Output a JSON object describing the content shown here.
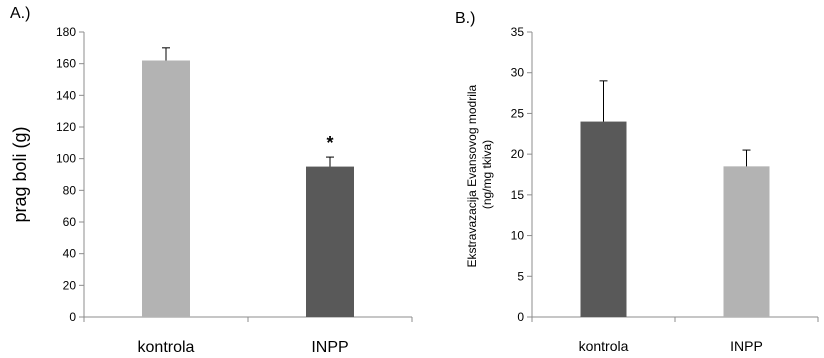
{
  "chart_data": [
    {
      "panel_label": "A.)",
      "type": "bar",
      "categories": [
        "kontrola",
        "INPP"
      ],
      "values": [
        162,
        95
      ],
      "errors": [
        8,
        6
      ],
      "bar_colors": [
        "#b3b3b3",
        "#595959"
      ],
      "annotations": [
        "",
        "*"
      ],
      "title": "",
      "xlabel": "",
      "ylabel": "prag boli (g)",
      "ylim": [
        0,
        180
      ],
      "ytick_step": 20,
      "grid": false
    },
    {
      "panel_label": "B.)",
      "type": "bar",
      "categories": [
        "kontrola",
        "INPP"
      ],
      "values": [
        24,
        18.5
      ],
      "errors": [
        5,
        2
      ],
      "bar_colors": [
        "#595959",
        "#b3b3b3"
      ],
      "annotations": [
        "",
        ""
      ],
      "title": "",
      "xlabel": "",
      "ylabel": "Ekstravazacija Evansovog modrila (ng/mg tkiva)",
      "ylabel_lines": [
        "Ekstravazacija Evansovog modrila",
        "(ng/mg tkiva)"
      ],
      "ylim": [
        0,
        35
      ],
      "ytick_step": 5,
      "grid": false
    }
  ]
}
